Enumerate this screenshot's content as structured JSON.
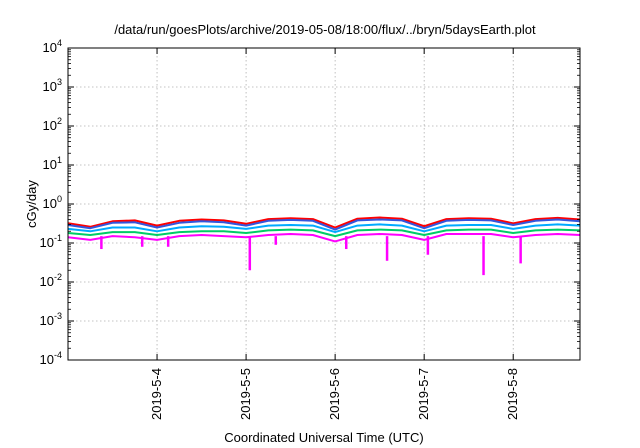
{
  "chart_data": {
    "type": "line",
    "title": "/data/run/goesPlots/archive/2019-05-08/18:00/flux/../bryn/5daysEarth.plot",
    "xlabel": "Coordinated Universal Time (UTC)",
    "ylabel": "cGy/day",
    "yscale": "log",
    "ylim": [
      0.0001,
      10000
    ],
    "yticks": [
      {
        "value": 0.0001,
        "base": "10",
        "exp": "-4"
      },
      {
        "value": 0.001,
        "base": "10",
        "exp": "-3"
      },
      {
        "value": 0.01,
        "base": "10",
        "exp": "-2"
      },
      {
        "value": 0.1,
        "base": "10",
        "exp": "-1"
      },
      {
        "value": 1,
        "base": "10",
        "exp": "0"
      },
      {
        "value": 10,
        "base": "10",
        "exp": "1"
      },
      {
        "value": 100,
        "base": "10",
        "exp": "2"
      },
      {
        "value": 1000,
        "base": "10",
        "exp": "3"
      },
      {
        "value": 10000,
        "base": "10",
        "exp": "4"
      }
    ],
    "xlim": [
      "2019-05-03 00:00",
      "2019-05-08 18:00"
    ],
    "xticks": [
      "2019-5-4",
      "2019-5-5",
      "2019-5-6",
      "2019-5-7",
      "2019-5-8"
    ],
    "grid": true,
    "legend": "none",
    "series": [
      {
        "color": "#ff00ff",
        "x": [
          "2019-05-03 00:00",
          "2019-05-03 06:00",
          "2019-05-03 12:00",
          "2019-05-03 18:00",
          "2019-05-04 00:00",
          "2019-05-04 06:00",
          "2019-05-04 12:00",
          "2019-05-04 18:00",
          "2019-05-05 00:00",
          "2019-05-05 06:00",
          "2019-05-05 12:00",
          "2019-05-05 18:00",
          "2019-05-06 00:00",
          "2019-05-06 06:00",
          "2019-05-06 12:00",
          "2019-05-06 18:00",
          "2019-05-07 00:00",
          "2019-05-07 06:00",
          "2019-05-07 12:00",
          "2019-05-07 18:00",
          "2019-05-08 00:00",
          "2019-05-08 06:00",
          "2019-05-08 12:00",
          "2019-05-08 18:00"
        ],
        "values": [
          0.14,
          0.12,
          0.15,
          0.14,
          0.12,
          0.15,
          0.16,
          0.15,
          0.14,
          0.16,
          0.17,
          0.16,
          0.11,
          0.16,
          0.17,
          0.16,
          0.12,
          0.17,
          0.17,
          0.17,
          0.14,
          0.16,
          0.17,
          0.16
        ]
      },
      {
        "color": "#00cc66",
        "x": [
          "2019-05-03 00:00",
          "2019-05-03 06:00",
          "2019-05-03 12:00",
          "2019-05-03 18:00",
          "2019-05-04 00:00",
          "2019-05-04 06:00",
          "2019-05-04 12:00",
          "2019-05-04 18:00",
          "2019-05-05 00:00",
          "2019-05-05 06:00",
          "2019-05-05 12:00",
          "2019-05-05 18:00",
          "2019-05-06 00:00",
          "2019-05-06 06:00",
          "2019-05-06 12:00",
          "2019-05-06 18:00",
          "2019-05-07 00:00",
          "2019-05-07 06:00",
          "2019-05-07 12:00",
          "2019-05-07 18:00",
          "2019-05-08 00:00",
          "2019-05-08 06:00",
          "2019-05-08 12:00",
          "2019-05-08 18:00"
        ],
        "values": [
          0.18,
          0.16,
          0.19,
          0.19,
          0.16,
          0.19,
          0.2,
          0.2,
          0.18,
          0.21,
          0.22,
          0.21,
          0.15,
          0.21,
          0.22,
          0.21,
          0.16,
          0.21,
          0.22,
          0.22,
          0.18,
          0.21,
          0.22,
          0.21
        ]
      },
      {
        "color": "#00aaff",
        "x": [
          "2019-05-03 00:00",
          "2019-05-03 06:00",
          "2019-05-03 12:00",
          "2019-05-03 18:00",
          "2019-05-04 00:00",
          "2019-05-04 06:00",
          "2019-05-04 12:00",
          "2019-05-04 18:00",
          "2019-05-05 00:00",
          "2019-05-05 06:00",
          "2019-05-05 12:00",
          "2019-05-05 18:00",
          "2019-05-06 00:00",
          "2019-05-06 06:00",
          "2019-05-06 12:00",
          "2019-05-06 18:00",
          "2019-05-07 00:00",
          "2019-05-07 06:00",
          "2019-05-07 12:00",
          "2019-05-07 18:00",
          "2019-05-08 00:00",
          "2019-05-08 06:00",
          "2019-05-08 12:00",
          "2019-05-08 18:00"
        ],
        "values": [
          0.23,
          0.2,
          0.25,
          0.25,
          0.2,
          0.25,
          0.27,
          0.26,
          0.23,
          0.28,
          0.29,
          0.28,
          0.19,
          0.28,
          0.3,
          0.28,
          0.2,
          0.28,
          0.29,
          0.29,
          0.23,
          0.28,
          0.3,
          0.28
        ]
      },
      {
        "color": "#ff0000",
        "x": [
          "2019-05-03 00:00",
          "2019-05-03 06:00",
          "2019-05-03 12:00",
          "2019-05-03 18:00",
          "2019-05-04 00:00",
          "2019-05-04 06:00",
          "2019-05-04 12:00",
          "2019-05-04 18:00",
          "2019-05-05 00:00",
          "2019-05-05 06:00",
          "2019-05-05 12:00",
          "2019-05-05 18:00",
          "2019-05-06 00:00",
          "2019-05-06 06:00",
          "2019-05-06 12:00",
          "2019-05-06 18:00",
          "2019-05-07 00:00",
          "2019-05-07 06:00",
          "2019-05-07 12:00",
          "2019-05-07 18:00",
          "2019-05-08 00:00",
          "2019-05-08 06:00",
          "2019-05-08 12:00",
          "2019-05-08 18:00"
        ],
        "values": [
          0.32,
          0.26,
          0.36,
          0.38,
          0.28,
          0.37,
          0.4,
          0.38,
          0.31,
          0.41,
          0.43,
          0.41,
          0.25,
          0.42,
          0.45,
          0.42,
          0.27,
          0.41,
          0.43,
          0.42,
          0.32,
          0.41,
          0.44,
          0.4
        ]
      },
      {
        "color": "#3355dd",
        "x": [
          "2019-05-03 00:00",
          "2019-05-03 06:00",
          "2019-05-03 12:00",
          "2019-05-03 18:00",
          "2019-05-04 00:00",
          "2019-05-04 06:00",
          "2019-05-04 12:00",
          "2019-05-04 18:00",
          "2019-05-05 00:00",
          "2019-05-05 06:00",
          "2019-05-05 12:00",
          "2019-05-05 18:00",
          "2019-05-06 00:00",
          "2019-05-06 06:00",
          "2019-05-06 12:00",
          "2019-05-06 18:00",
          "2019-05-07 00:00",
          "2019-05-07 06:00",
          "2019-05-07 12:00",
          "2019-05-07 18:00",
          "2019-05-08 00:00",
          "2019-05-08 06:00",
          "2019-05-08 12:00",
          "2019-05-08 18:00"
        ],
        "values": [
          0.29,
          0.24,
          0.33,
          0.34,
          0.25,
          0.33,
          0.36,
          0.34,
          0.28,
          0.37,
          0.39,
          0.37,
          0.22,
          0.38,
          0.4,
          0.38,
          0.24,
          0.37,
          0.39,
          0.38,
          0.29,
          0.37,
          0.4,
          0.36
        ]
      },
      {
        "color": "#ff00ff",
        "x": [
          "2019-05-03 09:00",
          "2019-05-03 20:00",
          "2019-05-04 03:00",
          "2019-05-05 01:00",
          "2019-05-05 08:00",
          "2019-05-06 03:00",
          "2019-05-06 14:00",
          "2019-05-07 01:00",
          "2019-05-07 16:00",
          "2019-05-08 02:00"
        ],
        "values": [
          0.07,
          0.08,
          0.08,
          0.02,
          0.09,
          0.07,
          0.035,
          0.05,
          0.015,
          0.03
        ]
      }
    ]
  }
}
